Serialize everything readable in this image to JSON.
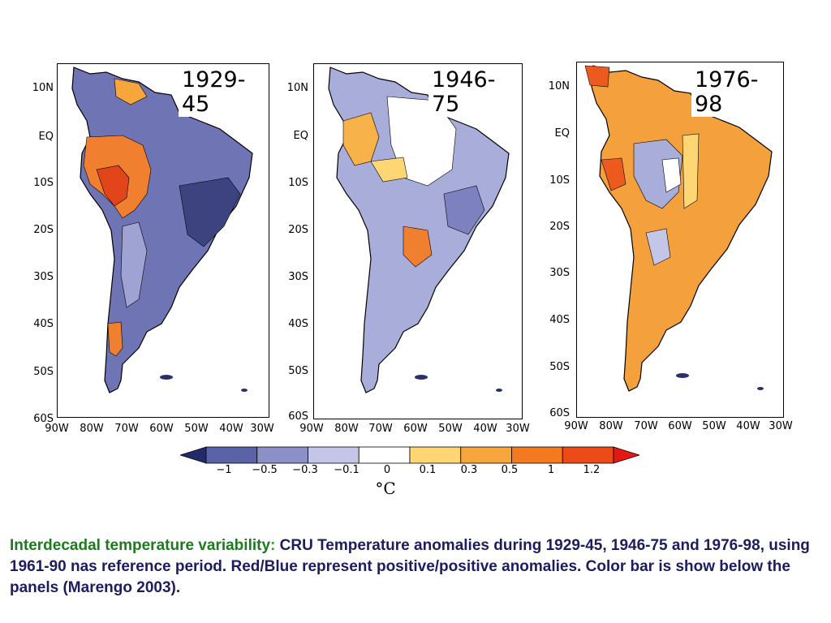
{
  "panels": [
    {
      "title": "1929-45",
      "theme": "cool"
    },
    {
      "title": "1946-75",
      "theme": "neutral"
    },
    {
      "title": "1976-98",
      "theme": "warm"
    }
  ],
  "lat_labels": [
    "10N",
    "EQ",
    "10S",
    "20S",
    "30S",
    "40S",
    "50S",
    "60S"
  ],
  "lon_labels": [
    "90W",
    "80W",
    "70W",
    "60W",
    "50W",
    "40W",
    "30W"
  ],
  "colorbar": {
    "ticks": [
      "−1",
      "−0.5",
      "−0.3",
      "−0.1",
      "0",
      "0.1",
      "0.3",
      "0.5",
      "1",
      "1.2"
    ],
    "colors": [
      "#232a6b",
      "#5a62a8",
      "#8b90c6",
      "#c3c6e6",
      "#ffffff",
      "#ffd674",
      "#f7a63c",
      "#f47a1f",
      "#ec4a16",
      "#e41a10"
    ],
    "unit": "°C"
  },
  "caption": {
    "lead": "Interdecadal temperature variability",
    "colon": ":",
    "body": " CRU Temperature anomalies during 1929-45, 1946-75 and 1976-98, using 1961-90 nas reference period. Red/Blue represent positive/positive anomalies.  Color bar is show below the panels  (Marengo 2003)."
  }
}
